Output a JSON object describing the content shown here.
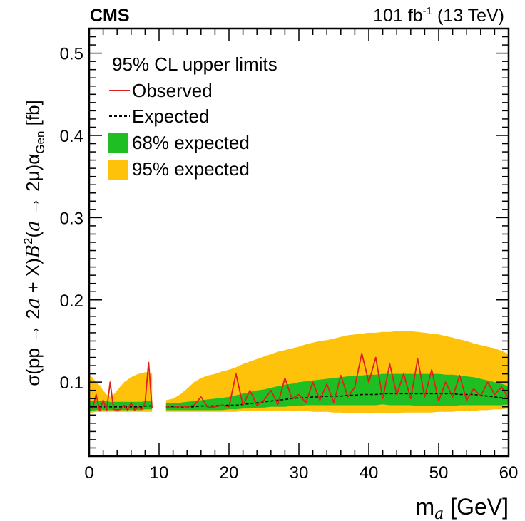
{
  "header": {
    "experiment": "CMS",
    "lumi_value": "101 fb",
    "lumi_exp": "-1",
    "energy": " (13 TeV)"
  },
  "legend": {
    "title": "95% CL upper limits",
    "observed": "Observed",
    "expected": "Expected",
    "band68": "68% expected",
    "band95": "95% expected"
  },
  "colors": {
    "observed": "#e0201b",
    "expected": "#000000",
    "band68": "#1fbf24",
    "band95": "#ffc20a"
  },
  "chart_data": {
    "type": "line",
    "title": "",
    "xlabel": "m_a [GeV]",
    "ylabel": "σ(pp → 2a + X)B²(a → 2μ)α_Gen [fb]",
    "xlim": [
      0,
      60
    ],
    "ylim": [
      0.01,
      0.53
    ],
    "x_ticks": [
      0,
      10,
      20,
      30,
      40,
      50,
      60
    ],
    "y_ticks": [
      0.1,
      0.2,
      0.3,
      0.4,
      0.5
    ],
    "grid": false,
    "legend_position": "top-left",
    "segments": [
      {
        "x": [
          0,
          0.5,
          1,
          1.5,
          2,
          2.5,
          3,
          3.5,
          4,
          4.5,
          5,
          5.5,
          6,
          6.5,
          7,
          7.5,
          8,
          8.5,
          9
        ],
        "expected": [
          0.07,
          0.07,
          0.07,
          0.07,
          0.07,
          0.07,
          0.07,
          0.07,
          0.07,
          0.07,
          0.07,
          0.07,
          0.07,
          0.07,
          0.07,
          0.07,
          0.071,
          0.071,
          0.071
        ],
        "band68_low": [
          0.065,
          0.065,
          0.066,
          0.066,
          0.066,
          0.066,
          0.066,
          0.066,
          0.066,
          0.066,
          0.066,
          0.066,
          0.066,
          0.066,
          0.066,
          0.066,
          0.067,
          0.067,
          0.067
        ],
        "band68_high": [
          0.077,
          0.077,
          0.077,
          0.077,
          0.077,
          0.077,
          0.076,
          0.076,
          0.076,
          0.076,
          0.076,
          0.076,
          0.076,
          0.076,
          0.076,
          0.076,
          0.077,
          0.077,
          0.077
        ],
        "band95_low": [
          0.063,
          0.063,
          0.064,
          0.064,
          0.064,
          0.064,
          0.064,
          0.064,
          0.064,
          0.064,
          0.064,
          0.064,
          0.064,
          0.064,
          0.064,
          0.064,
          0.064,
          0.064,
          0.064
        ],
        "band95_high": [
          0.11,
          0.105,
          0.1,
          0.096,
          0.09,
          0.085,
          0.082,
          0.085,
          0.09,
          0.095,
          0.1,
          0.103,
          0.106,
          0.108,
          0.11,
          0.111,
          0.112,
          0.112,
          0.11
        ],
        "observed": [
          0.072,
          0.068,
          0.085,
          0.065,
          0.078,
          0.066,
          0.1,
          0.067,
          0.066,
          0.067,
          0.072,
          0.066,
          0.075,
          0.066,
          0.07,
          0.067,
          0.075,
          0.124,
          0.068
        ]
      },
      {
        "x": [
          11,
          12,
          13,
          14,
          15,
          16,
          17,
          18,
          19,
          20,
          21,
          22,
          23,
          24,
          25,
          26,
          27,
          28,
          29,
          30,
          31,
          32,
          33,
          34,
          35,
          36,
          37,
          38,
          39,
          40,
          41,
          42,
          43,
          44,
          45,
          46,
          47,
          48,
          49,
          50,
          51,
          52,
          53,
          54,
          55,
          56,
          57,
          58,
          59,
          60
        ],
        "expected": [
          0.07,
          0.07,
          0.07,
          0.07,
          0.07,
          0.071,
          0.071,
          0.071,
          0.072,
          0.072,
          0.072,
          0.073,
          0.074,
          0.075,
          0.076,
          0.077,
          0.078,
          0.079,
          0.08,
          0.081,
          0.081,
          0.082,
          0.082,
          0.083,
          0.083,
          0.083,
          0.084,
          0.084,
          0.085,
          0.085,
          0.085,
          0.086,
          0.086,
          0.086,
          0.086,
          0.086,
          0.086,
          0.086,
          0.086,
          0.086,
          0.086,
          0.086,
          0.085,
          0.085,
          0.085,
          0.084,
          0.083,
          0.082,
          0.081,
          0.08
        ],
        "band68_low": [
          0.066,
          0.066,
          0.066,
          0.066,
          0.066,
          0.066,
          0.066,
          0.066,
          0.066,
          0.067,
          0.067,
          0.068,
          0.068,
          0.069,
          0.069,
          0.07,
          0.07,
          0.07,
          0.071,
          0.071,
          0.072,
          0.072,
          0.072,
          0.072,
          0.072,
          0.072,
          0.072,
          0.072,
          0.072,
          0.072,
          0.072,
          0.073,
          0.072,
          0.072,
          0.072,
          0.072,
          0.071,
          0.071,
          0.071,
          0.071,
          0.071,
          0.071,
          0.072,
          0.072,
          0.072,
          0.072,
          0.072,
          0.072,
          0.072,
          0.073
        ],
        "band68_high": [
          0.075,
          0.075,
          0.075,
          0.076,
          0.077,
          0.078,
          0.079,
          0.08,
          0.081,
          0.082,
          0.084,
          0.086,
          0.088,
          0.09,
          0.091,
          0.093,
          0.095,
          0.097,
          0.098,
          0.1,
          0.101,
          0.102,
          0.103,
          0.104,
          0.105,
          0.106,
          0.107,
          0.108,
          0.108,
          0.109,
          0.109,
          0.11,
          0.11,
          0.11,
          0.11,
          0.11,
          0.11,
          0.11,
          0.11,
          0.11,
          0.109,
          0.109,
          0.108,
          0.107,
          0.106,
          0.104,
          0.102,
          0.1,
          0.098,
          0.095
        ],
        "band95_low": [
          0.064,
          0.064,
          0.064,
          0.064,
          0.064,
          0.064,
          0.064,
          0.064,
          0.064,
          0.064,
          0.064,
          0.065,
          0.065,
          0.065,
          0.065,
          0.065,
          0.065,
          0.065,
          0.065,
          0.065,
          0.065,
          0.064,
          0.064,
          0.064,
          0.063,
          0.063,
          0.062,
          0.062,
          0.062,
          0.062,
          0.062,
          0.062,
          0.062,
          0.062,
          0.063,
          0.063,
          0.063,
          0.063,
          0.063,
          0.064,
          0.064,
          0.064,
          0.065,
          0.065,
          0.065,
          0.066,
          0.066,
          0.067,
          0.067,
          0.068
        ],
        "band95_high": [
          0.078,
          0.08,
          0.085,
          0.092,
          0.1,
          0.105,
          0.108,
          0.11,
          0.113,
          0.115,
          0.118,
          0.122,
          0.125,
          0.128,
          0.131,
          0.134,
          0.137,
          0.139,
          0.141,
          0.143,
          0.146,
          0.148,
          0.15,
          0.151,
          0.153,
          0.155,
          0.157,
          0.158,
          0.159,
          0.16,
          0.16,
          0.161,
          0.161,
          0.162,
          0.162,
          0.162,
          0.161,
          0.16,
          0.159,
          0.158,
          0.156,
          0.154,
          0.152,
          0.15,
          0.147,
          0.145,
          0.143,
          0.141,
          0.138,
          0.134
        ],
        "observed": [
          0.07,
          0.069,
          0.071,
          0.07,
          0.072,
          0.082,
          0.069,
          0.07,
          0.072,
          0.07,
          0.11,
          0.072,
          0.09,
          0.072,
          0.078,
          0.09,
          0.073,
          0.105,
          0.08,
          0.085,
          0.075,
          0.1,
          0.078,
          0.098,
          0.075,
          0.108,
          0.082,
          0.094,
          0.135,
          0.1,
          0.13,
          0.08,
          0.122,
          0.085,
          0.11,
          0.08,
          0.128,
          0.082,
          0.115,
          0.077,
          0.1,
          0.082,
          0.108,
          0.078,
          0.092,
          0.083,
          0.1,
          0.085,
          0.094,
          0.08
        ]
      }
    ]
  }
}
